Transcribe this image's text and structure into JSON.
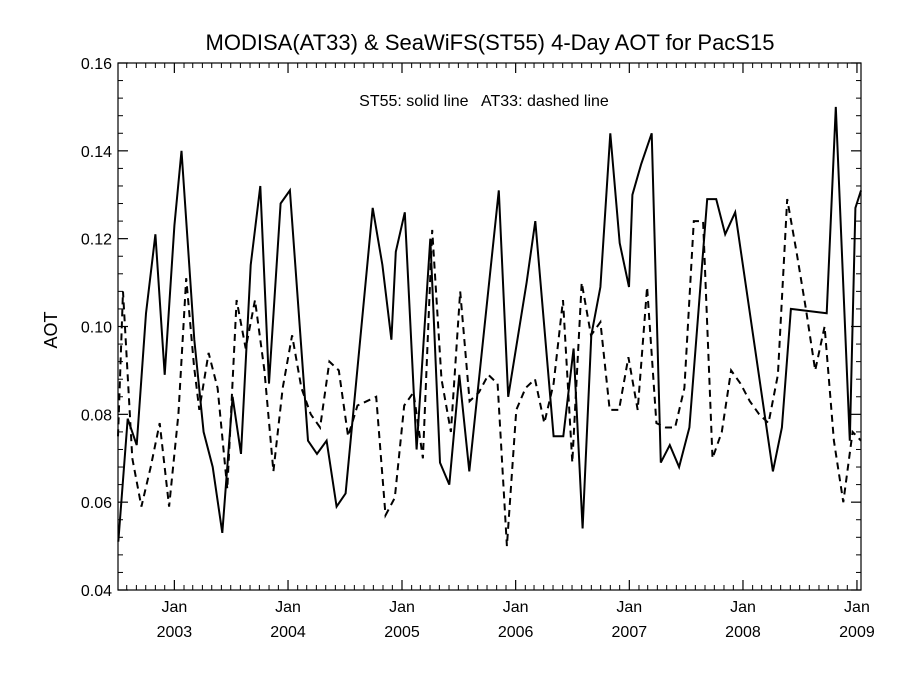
{
  "chart_data": {
    "type": "line",
    "title": "MODISA(AT33) & SeaWiFS(ST55) 4-Day AOT for PacS15",
    "ylabel": "AOT",
    "xlabel": "",
    "annotation": "ST55: solid line   AT33: dashed line",
    "ylim": [
      0.04,
      0.16
    ],
    "xlim": [
      "2002-07-04",
      "2009-01-14"
    ],
    "y_ticks": [
      "0.04",
      "0.06",
      "0.08",
      "0.10",
      "0.12",
      "0.14",
      "0.16"
    ],
    "x_ticks": [
      {
        "date": "2003-01-01",
        "month": "Jan",
        "year": "2003"
      },
      {
        "date": "2004-01-01",
        "month": "Jan",
        "year": "2004"
      },
      {
        "date": "2005-01-01",
        "month": "Jan",
        "year": "2005"
      },
      {
        "date": "2006-01-01",
        "month": "Jan",
        "year": "2006"
      },
      {
        "date": "2007-01-01",
        "month": "Jan",
        "year": "2007"
      },
      {
        "date": "2008-01-01",
        "month": "Jan",
        "year": "2008"
      },
      {
        "date": "2009-01-01",
        "month": "Jan",
        "year": "2009"
      }
    ],
    "grid": false,
    "series": [
      {
        "name": "ST55",
        "style": "solid",
        "color": "#000000",
        "points": [
          [
            "2002-07-05",
            0.051
          ],
          [
            "2002-08-04",
            0.079
          ],
          [
            "2002-09-02",
            0.073
          ],
          [
            "2002-10-02",
            0.103
          ],
          [
            "2002-11-01",
            0.121
          ],
          [
            "2002-12-01",
            0.089
          ],
          [
            "2003-01-01",
            0.123
          ],
          [
            "2003-01-24",
            0.14
          ],
          [
            "2003-03-06",
            0.097
          ],
          [
            "2003-04-05",
            0.076
          ],
          [
            "2003-05-04",
            0.068
          ],
          [
            "2003-06-04",
            0.053
          ],
          [
            "2003-07-07",
            0.084
          ],
          [
            "2003-08-03",
            0.071
          ],
          [
            "2003-09-03",
            0.114
          ],
          [
            "2003-10-04",
            0.132
          ],
          [
            "2003-11-01",
            0.087
          ],
          [
            "2003-12-08",
            0.128
          ],
          [
            "2004-01-07",
            0.131
          ],
          [
            "2004-03-05",
            0.074
          ],
          [
            "2004-04-03",
            0.071
          ],
          [
            "2004-05-04",
            0.074
          ],
          [
            "2004-06-05",
            0.059
          ],
          [
            "2004-07-04",
            0.062
          ],
          [
            "2004-09-29",
            0.127
          ],
          [
            "2004-10-30",
            0.114
          ],
          [
            "2004-11-28",
            0.097
          ],
          [
            "2004-12-12",
            0.117
          ],
          [
            "2005-01-10",
            0.126
          ],
          [
            "2005-02-17",
            0.072
          ],
          [
            "2005-04-02",
            0.12
          ],
          [
            "2005-05-03",
            0.069
          ],
          [
            "2005-06-02",
            0.064
          ],
          [
            "2005-07-04",
            0.089
          ],
          [
            "2005-08-05",
            0.067
          ],
          [
            "2005-11-08",
            0.131
          ],
          [
            "2005-12-08",
            0.084
          ],
          [
            "2006-02-05",
            0.11
          ],
          [
            "2006-03-05",
            0.124
          ],
          [
            "2006-05-03",
            0.075
          ],
          [
            "2006-06-03",
            0.075
          ],
          [
            "2006-07-06",
            0.095
          ],
          [
            "2006-08-04",
            0.054
          ],
          [
            "2006-09-01",
            0.098
          ],
          [
            "2006-09-30",
            0.109
          ],
          [
            "2006-11-01",
            0.144
          ],
          [
            "2006-12-01",
            0.119
          ],
          [
            "2006-12-31",
            0.109
          ],
          [
            "2007-01-11",
            0.13
          ],
          [
            "2007-02-08",
            0.137
          ],
          [
            "2007-03-14",
            0.144
          ],
          [
            "2007-04-12",
            0.069
          ],
          [
            "2007-05-11",
            0.073
          ],
          [
            "2007-06-10",
            0.068
          ],
          [
            "2007-07-13",
            0.077
          ],
          [
            "2007-09-08",
            0.129
          ],
          [
            "2007-10-07",
            0.129
          ],
          [
            "2007-11-05",
            0.121
          ],
          [
            "2007-12-07",
            0.126
          ],
          [
            "2008-04-06",
            0.067
          ],
          [
            "2008-05-05",
            0.077
          ],
          [
            "2008-06-03",
            0.104
          ],
          [
            "2008-09-26",
            0.103
          ],
          [
            "2008-10-25",
            0.15
          ],
          [
            "2008-12-09",
            0.074
          ],
          [
            "2008-12-27",
            0.127
          ],
          [
            "2009-01-14",
            0.131
          ]
        ]
      },
      {
        "name": "AT33",
        "style": "dashed",
        "color": "#000000",
        "points": [
          [
            "2002-07-04",
            0.075
          ],
          [
            "2002-07-20",
            0.108
          ],
          [
            "2002-08-19",
            0.07
          ],
          [
            "2002-09-17",
            0.059
          ],
          [
            "2002-10-17",
            0.068
          ],
          [
            "2002-11-15",
            0.078
          ],
          [
            "2002-12-15",
            0.059
          ],
          [
            "2003-01-14",
            0.08
          ],
          [
            "2003-02-08",
            0.111
          ],
          [
            "2003-03-05",
            0.091
          ],
          [
            "2003-03-22",
            0.081
          ],
          [
            "2003-04-21",
            0.094
          ],
          [
            "2003-05-20",
            0.086
          ],
          [
            "2003-06-20",
            0.063
          ],
          [
            "2003-07-20",
            0.106
          ],
          [
            "2003-08-18",
            0.095
          ],
          [
            "2003-09-17",
            0.106
          ],
          [
            "2003-10-17",
            0.09
          ],
          [
            "2003-11-15",
            0.067
          ],
          [
            "2003-12-15",
            0.086
          ],
          [
            "2004-01-14",
            0.098
          ],
          [
            "2004-02-13",
            0.086
          ],
          [
            "2004-03-14",
            0.08
          ],
          [
            "2004-04-13",
            0.077
          ],
          [
            "2004-05-13",
            0.092
          ],
          [
            "2004-06-12",
            0.09
          ],
          [
            "2004-07-12",
            0.075
          ],
          [
            "2004-08-11",
            0.082
          ],
          [
            "2004-09-10",
            0.083
          ],
          [
            "2004-10-10",
            0.084
          ],
          [
            "2004-11-09",
            0.057
          ],
          [
            "2004-12-09",
            0.061
          ],
          [
            "2005-01-08",
            0.082
          ],
          [
            "2005-02-07",
            0.085
          ],
          [
            "2005-03-09",
            0.07
          ],
          [
            "2005-04-08",
            0.122
          ],
          [
            "2005-05-08",
            0.088
          ],
          [
            "2005-06-07",
            0.076
          ],
          [
            "2005-07-07",
            0.108
          ],
          [
            "2005-08-06",
            0.083
          ],
          [
            "2005-09-05",
            0.085
          ],
          [
            "2005-10-05",
            0.089
          ],
          [
            "2005-11-04",
            0.087
          ],
          [
            "2005-12-04",
            0.05
          ],
          [
            "2006-01-03",
            0.081
          ],
          [
            "2006-02-02",
            0.086
          ],
          [
            "2006-03-04",
            0.088
          ],
          [
            "2006-04-03",
            0.078
          ],
          [
            "2006-05-03",
            0.087
          ],
          [
            "2006-06-02",
            0.106
          ],
          [
            "2006-07-02",
            0.069
          ],
          [
            "2006-08-01",
            0.11
          ],
          [
            "2006-08-31",
            0.098
          ],
          [
            "2006-09-30",
            0.101
          ],
          [
            "2006-10-30",
            0.081
          ],
          [
            "2006-11-29",
            0.081
          ],
          [
            "2006-12-29",
            0.093
          ],
          [
            "2007-01-28",
            0.081
          ],
          [
            "2007-02-27",
            0.109
          ],
          [
            "2007-03-29",
            0.078
          ],
          [
            "2007-04-28",
            0.077
          ],
          [
            "2007-05-28",
            0.077
          ],
          [
            "2007-06-27",
            0.086
          ],
          [
            "2007-07-27",
            0.124
          ],
          [
            "2007-08-26",
            0.124
          ],
          [
            "2007-09-25",
            0.07
          ],
          [
            "2007-10-25",
            0.076
          ],
          [
            "2007-11-24",
            0.09
          ],
          [
            "2007-12-24",
            0.087
          ],
          [
            "2008-01-23",
            0.083
          ],
          [
            "2008-02-22",
            0.08
          ],
          [
            "2008-03-23",
            0.078
          ],
          [
            "2008-04-22",
            0.089
          ],
          [
            "2008-05-22",
            0.129
          ],
          [
            "2008-06-21",
            0.117
          ],
          [
            "2008-07-21",
            0.104
          ],
          [
            "2008-08-20",
            0.09
          ],
          [
            "2008-09-19",
            0.1
          ],
          [
            "2008-10-19",
            0.074
          ],
          [
            "2008-11-18",
            0.06
          ],
          [
            "2008-12-18",
            0.076
          ],
          [
            "2009-01-14",
            0.074
          ]
        ]
      }
    ]
  }
}
